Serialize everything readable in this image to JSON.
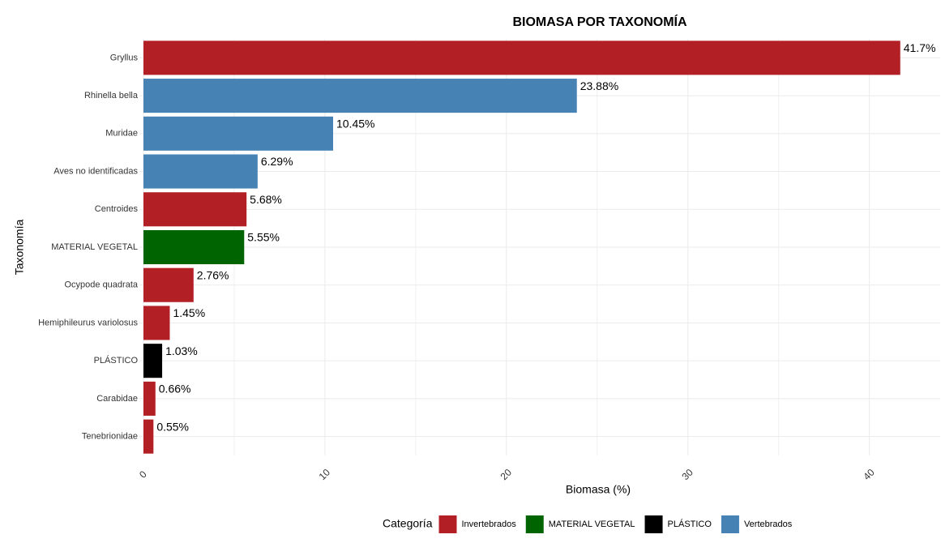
{
  "chart_data": {
    "type": "bar",
    "orientation": "horizontal",
    "title": "BIOMASA POR TAXONOMÍA",
    "x_label": "Biomasa (%)",
    "y_label": "Taxonomía",
    "categories": [
      "Gryllus",
      "Rhinella bella",
      "Muridae",
      "Aves no identificadas",
      "Centroides",
      "MATERIAL VEGETAL",
      "Ocypode quadrata",
      "Hemiphileurus variolosus",
      "PLÁSTICO",
      "Carabidae",
      "Tenebrionidae"
    ],
    "values": [
      41.7,
      23.88,
      10.45,
      6.29,
      5.68,
      5.55,
      2.76,
      1.45,
      1.03,
      0.66,
      0.55
    ],
    "value_labels": [
      "41.7%",
      "23.88%",
      "10.45%",
      "6.29%",
      "5.68%",
      "5.55%",
      "2.76%",
      "1.45%",
      "1.03%",
      "0.66%",
      "0.55%"
    ],
    "colors": [
      "#b22025",
      "#4682b4",
      "#4682b4",
      "#4682b4",
      "#b22025",
      "#006400",
      "#b22025",
      "#b22025",
      "#000000",
      "#b22025",
      "#b22025"
    ],
    "legend_title": "Categoría",
    "legend": [
      {
        "name": "Invertebrados",
        "color": "#b22025"
      },
      {
        "name": "MATERIAL VEGETAL",
        "color": "#006400"
      },
      {
        "name": "PLÁSTICO",
        "color": "#000000"
      },
      {
        "name": "Vertebrados",
        "color": "#4682b4"
      }
    ],
    "xlim": [
      0,
      43.9
    ],
    "xticks": [
      0,
      10,
      20,
      30,
      40
    ],
    "xminor": [
      5,
      15,
      25,
      35
    ],
    "grid": true
  }
}
